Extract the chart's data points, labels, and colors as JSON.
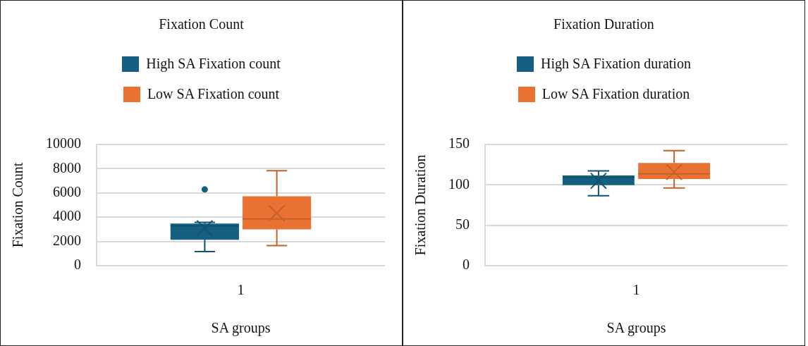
{
  "chart_data": [
    {
      "type": "box",
      "title": "Fixation Count",
      "xlabel": "SA groups",
      "ylabel": "Fixation Count",
      "categories": [
        "1"
      ],
      "ylim": [
        0,
        10000
      ],
      "yticks": [
        0,
        2000,
        4000,
        6000,
        8000,
        10000
      ],
      "grid": "y",
      "legend": "top",
      "series": [
        {
          "name": "High SA Fixation count",
          "color": "#156082",
          "boxes": [
            {
              "low": 1160,
              "q1": 2140,
              "median": 3280,
              "q3": 3470,
              "high": 3580,
              "mean": 3090,
              "outliers": [
                6290
              ]
            }
          ]
        },
        {
          "name": "Low SA Fixation count",
          "color": "#e97132",
          "boxes": [
            {
              "low": 1660,
              "q1": 3000,
              "median": 3850,
              "q3": 5730,
              "high": 7840,
              "mean": 4330
            }
          ]
        }
      ]
    },
    {
      "type": "box",
      "title": "Fixation Duration",
      "xlabel": "SA groups",
      "ylabel": "Fixation Duration",
      "categories": [
        "1"
      ],
      "ylim": [
        0,
        150
      ],
      "yticks": [
        0,
        50,
        100,
        150
      ],
      "grid": "y",
      "legend": "top",
      "series": [
        {
          "name": "High SA Fixation duration",
          "color": "#156082",
          "boxes": [
            {
              "low": 86.5,
              "q1": 99.6,
              "median": 109.3,
              "q3": 111.6,
              "high": 117.3,
              "mean": 105
            }
          ]
        },
        {
          "name": "Low SA Fixation duration",
          "color": "#e97132",
          "boxes": [
            {
              "low": 96.2,
              "q1": 107.3,
              "median": 113.6,
              "q3": 127.2,
              "high": 142.3,
              "mean": 115.9
            }
          ]
        }
      ]
    }
  ]
}
